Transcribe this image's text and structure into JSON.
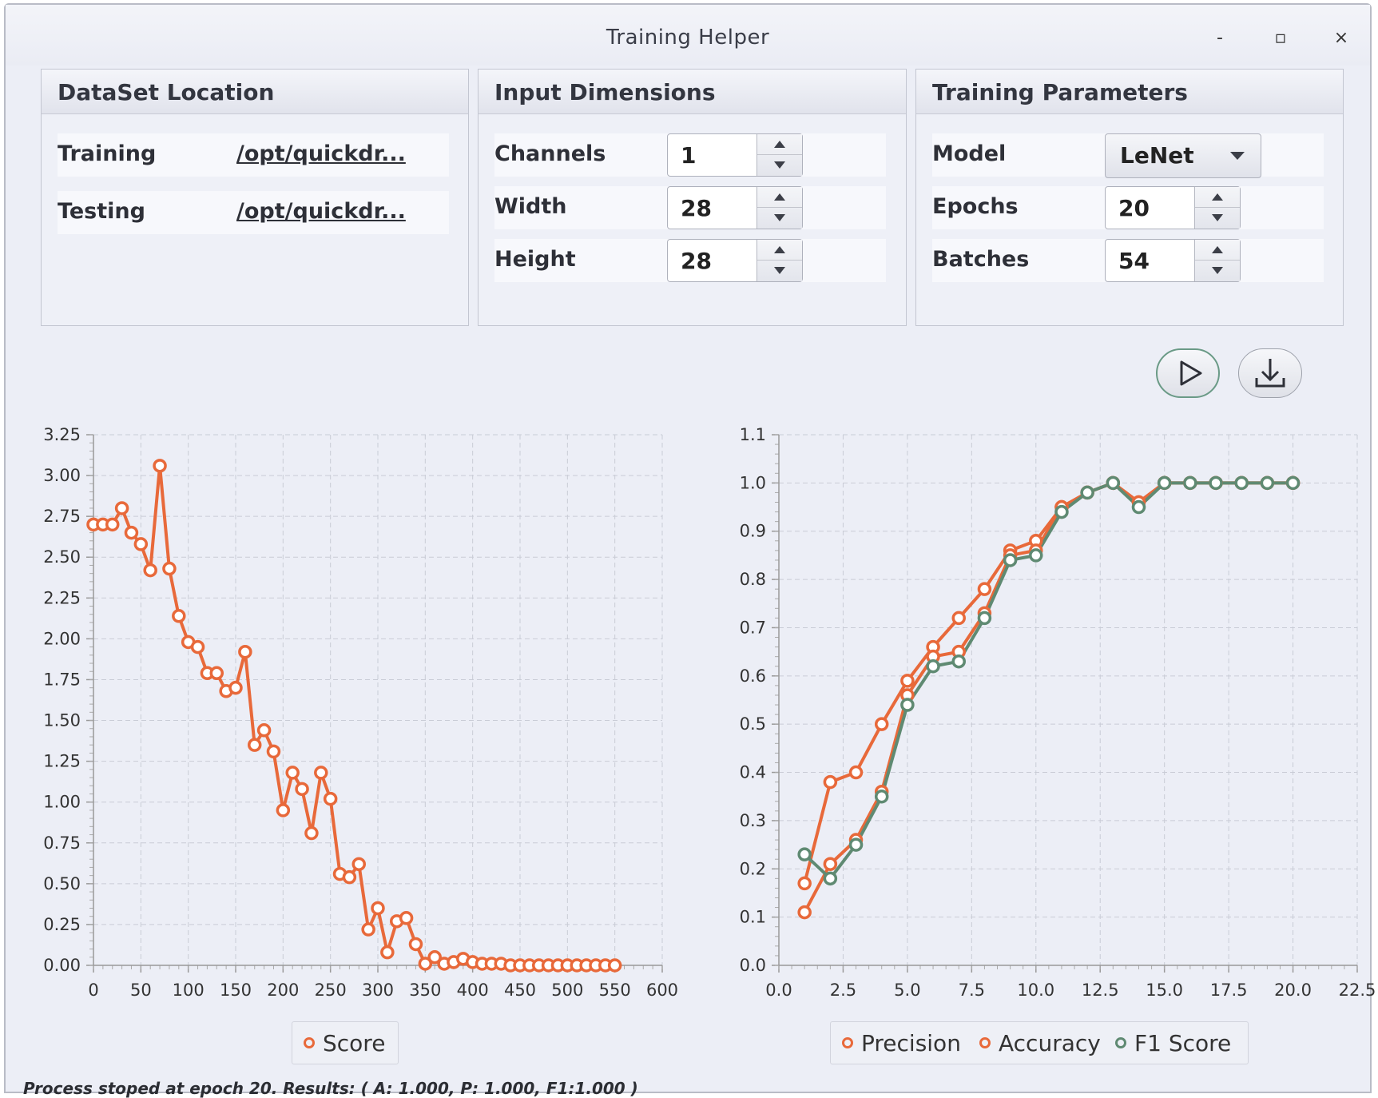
{
  "window": {
    "title": "Training Helper",
    "controls": {
      "minimize": "-",
      "maximize": "▫",
      "close": "×"
    }
  },
  "dataset": {
    "title": "DataSet Location",
    "training_label": "Training",
    "training_path": "/opt/quickdr...",
    "testing_label": "Testing",
    "testing_path": "/opt/quickdr..."
  },
  "dimensions": {
    "title": "Input Dimensions",
    "channels_label": "Channels",
    "channels_value": "1",
    "width_label": "Width",
    "width_value": "28",
    "height_label": "Height",
    "height_value": "28"
  },
  "params": {
    "title": "Training Parameters",
    "model_label": "Model",
    "model_value": "LeNet",
    "epochs_label": "Epochs",
    "epochs_value": "20",
    "batches_label": "Batches",
    "batches_value": "54"
  },
  "actions": {
    "run_icon": "play-icon",
    "save_icon": "download-icon"
  },
  "status": "Process stoped at epoch 20. Results: ( A: 1.000, P: 1.000, F1:1.000 )",
  "colors": {
    "orange": "#e8693a",
    "green": "#5f8a72",
    "grid": "#c9ccd6"
  },
  "chart_data": [
    {
      "type": "line",
      "xlim": [
        0,
        600
      ],
      "ylim": [
        0,
        3.25
      ],
      "x_ticks": [
        "0",
        "50",
        "100",
        "150",
        "200",
        "250",
        "300",
        "350",
        "400",
        "450",
        "500",
        "550",
        "600"
      ],
      "y_ticks": [
        "0.00",
        "0.25",
        "0.50",
        "0.75",
        "1.00",
        "1.25",
        "1.50",
        "1.75",
        "2.00",
        "2.25",
        "2.50",
        "2.75",
        "3.00",
        "3.25"
      ],
      "legend_position": "bottom",
      "series": [
        {
          "name": "Score",
          "color": "#e8693a",
          "points": [
            [
              0,
              2.7
            ],
            [
              10,
              2.7
            ],
            [
              20,
              2.7
            ],
            [
              30,
              2.8
            ],
            [
              40,
              2.65
            ],
            [
              50,
              2.58
            ],
            [
              60,
              2.42
            ],
            [
              70,
              3.06
            ],
            [
              80,
              2.43
            ],
            [
              90,
              2.14
            ],
            [
              100,
              1.98
            ],
            [
              110,
              1.95
            ],
            [
              120,
              1.79
            ],
            [
              130,
              1.79
            ],
            [
              140,
              1.68
            ],
            [
              150,
              1.7
            ],
            [
              160,
              1.92
            ],
            [
              170,
              1.35
            ],
            [
              180,
              1.44
            ],
            [
              190,
              1.31
            ],
            [
              200,
              0.95
            ],
            [
              210,
              1.18
            ],
            [
              220,
              1.08
            ],
            [
              230,
              0.81
            ],
            [
              240,
              1.18
            ],
            [
              250,
              1.02
            ],
            [
              260,
              0.56
            ],
            [
              270,
              0.54
            ],
            [
              280,
              0.62
            ],
            [
              290,
              0.22
            ],
            [
              300,
              0.35
            ],
            [
              310,
              0.08
            ],
            [
              320,
              0.27
            ],
            [
              330,
              0.29
            ],
            [
              340,
              0.13
            ],
            [
              350,
              0.01
            ],
            [
              360,
              0.05
            ],
            [
              370,
              0.01
            ],
            [
              380,
              0.02
            ],
            [
              390,
              0.04
            ],
            [
              400,
              0.02
            ],
            [
              410,
              0.01
            ],
            [
              420,
              0.01
            ],
            [
              430,
              0.01
            ],
            [
              440,
              0.0
            ],
            [
              450,
              0.0
            ],
            [
              460,
              0.0
            ],
            [
              470,
              0.0
            ],
            [
              480,
              0.0
            ],
            [
              490,
              0.0
            ],
            [
              500,
              0.0
            ],
            [
              510,
              0.0
            ],
            [
              520,
              0.0
            ],
            [
              530,
              0.0
            ],
            [
              540,
              0.0
            ],
            [
              550,
              0.0
            ]
          ]
        }
      ]
    },
    {
      "type": "line",
      "xlim": [
        0,
        22.5
      ],
      "ylim": [
        0,
        1.1
      ],
      "x_ticks": [
        "0.0",
        "2.5",
        "5.0",
        "7.5",
        "10.0",
        "12.5",
        "15.0",
        "17.5",
        "20.0",
        "22.5"
      ],
      "y_ticks": [
        "0.0",
        "0.1",
        "0.2",
        "0.3",
        "0.4",
        "0.5",
        "0.6",
        "0.7",
        "0.8",
        "0.9",
        "1.0",
        "1.1"
      ],
      "legend_position": "bottom",
      "series": [
        {
          "name": "Precision",
          "color": "#e8693a",
          "points": [
            [
              1,
              0.17
            ],
            [
              2,
              0.38
            ],
            [
              3,
              0.4
            ],
            [
              4,
              0.5
            ],
            [
              5,
              0.59
            ],
            [
              6,
              0.66
            ],
            [
              7,
              0.72
            ],
            [
              8,
              0.78
            ],
            [
              9,
              0.86
            ],
            [
              10,
              0.88
            ],
            [
              11,
              0.95
            ],
            [
              12,
              0.98
            ],
            [
              13,
              1.0
            ],
            [
              14,
              0.96
            ],
            [
              15,
              1.0
            ],
            [
              16,
              1.0
            ],
            [
              17,
              1.0
            ],
            [
              18,
              1.0
            ],
            [
              19,
              1.0
            ],
            [
              20,
              1.0
            ]
          ]
        },
        {
          "name": "Accuracy",
          "color": "#e8693a",
          "points": [
            [
              1,
              0.11
            ],
            [
              2,
              0.21
            ],
            [
              3,
              0.26
            ],
            [
              4,
              0.36
            ],
            [
              5,
              0.56
            ],
            [
              6,
              0.64
            ],
            [
              7,
              0.65
            ],
            [
              8,
              0.73
            ],
            [
              9,
              0.85
            ],
            [
              10,
              0.86
            ],
            [
              11,
              0.95
            ],
            [
              12,
              0.98
            ],
            [
              13,
              1.0
            ],
            [
              14,
              0.96
            ],
            [
              15,
              1.0
            ],
            [
              16,
              1.0
            ],
            [
              17,
              1.0
            ],
            [
              18,
              1.0
            ],
            [
              19,
              1.0
            ],
            [
              20,
              1.0
            ]
          ]
        },
        {
          "name": "F1 Score",
          "color": "#5f8a72",
          "points": [
            [
              1,
              0.23
            ],
            [
              2,
              0.18
            ],
            [
              3,
              0.25
            ],
            [
              4,
              0.35
            ],
            [
              5,
              0.54
            ],
            [
              6,
              0.62
            ],
            [
              7,
              0.63
            ],
            [
              8,
              0.72
            ],
            [
              9,
              0.84
            ],
            [
              10,
              0.85
            ],
            [
              11,
              0.94
            ],
            [
              12,
              0.98
            ],
            [
              13,
              1.0
            ],
            [
              14,
              0.95
            ],
            [
              15,
              1.0
            ],
            [
              16,
              1.0
            ],
            [
              17,
              1.0
            ],
            [
              18,
              1.0
            ],
            [
              19,
              1.0
            ],
            [
              20,
              1.0
            ]
          ]
        }
      ]
    }
  ]
}
